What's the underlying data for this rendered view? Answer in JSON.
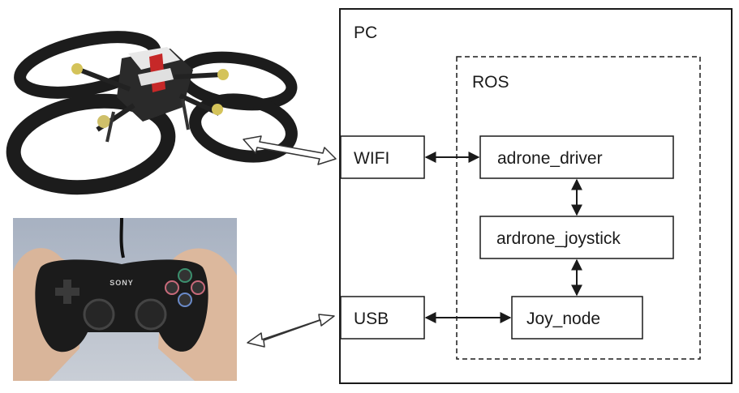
{
  "pc": {
    "label": "PC"
  },
  "ros": {
    "label": "ROS"
  },
  "nodes": {
    "wifi": "WIFI",
    "usb": "USB",
    "adrone_driver": "adrone_driver",
    "ardrone_joystick": "ardrone_joystick",
    "joy_node": "Joy_node"
  },
  "gamepad_brand": "SONY",
  "colors": {
    "line": "#1a1a1a",
    "drone_body": "#1c1c1c",
    "accent": "#d32f2f"
  }
}
